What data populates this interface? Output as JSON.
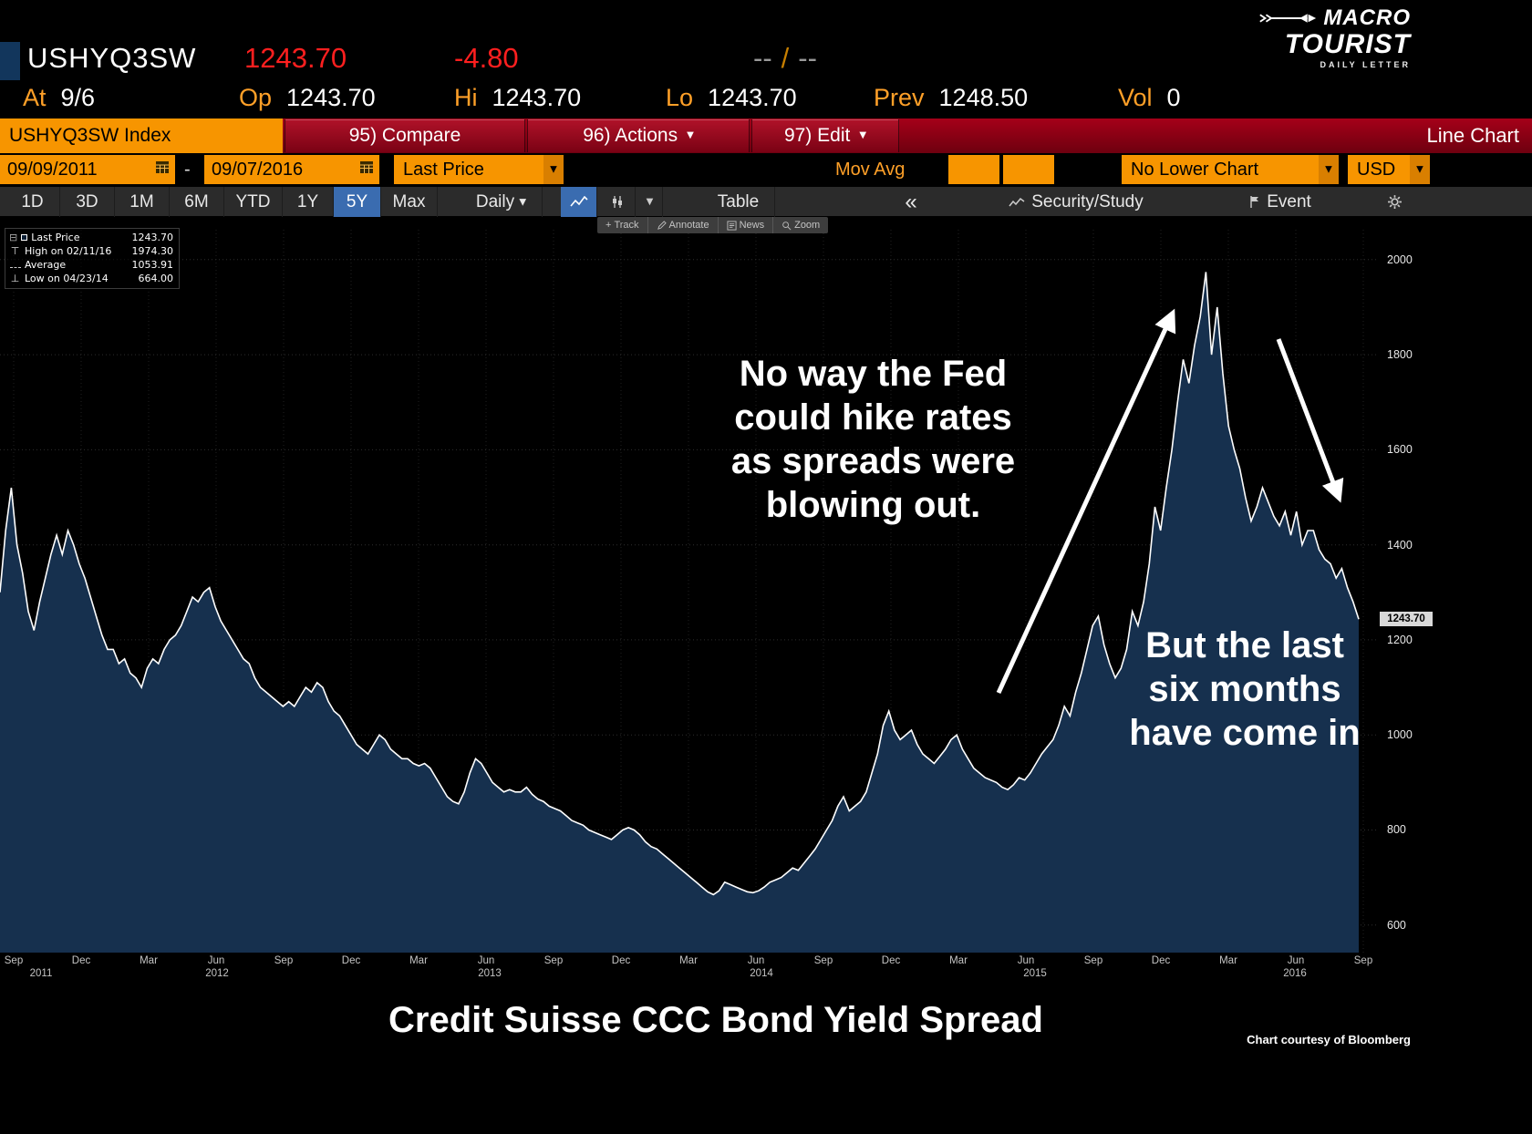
{
  "header": {
    "ticker": "USHYQ3SW",
    "last_price": "1243.70",
    "change": "-4.80",
    "bid": "--",
    "bid_ask_sep": "/",
    "ask": "--",
    "at_label": "At",
    "at_value": "9/6",
    "stats": [
      {
        "label": "Op",
        "value": "1243.70"
      },
      {
        "label": "Hi",
        "value": "1243.70"
      },
      {
        "label": "Lo",
        "value": "1243.70"
      },
      {
        "label": "Prev",
        "value": "1248.50"
      },
      {
        "label": "Vol",
        "value": "0"
      }
    ],
    "logo": {
      "top": "MACRO",
      "bottom": "TOURIST",
      "tagline": "DAILY LETTER"
    }
  },
  "menubar": {
    "security_label": "USHYQ3SW Index",
    "compare": "95) Compare",
    "actions": "96) Actions",
    "edit": "97) Edit",
    "chart_type": "Line Chart"
  },
  "datebar": {
    "start_date": "09/09/2011",
    "range_separator": "-",
    "end_date": "09/07/2016",
    "price_field": "Last Price",
    "mov_avg_label": "Mov Avg",
    "lower_chart": "No Lower Chart",
    "currency": "USD"
  },
  "toolbar": {
    "ranges": [
      "1D",
      "3D",
      "1M",
      "6M",
      "YTD",
      "1Y",
      "5Y",
      "Max"
    ],
    "selected_range": "5Y",
    "period": "Daily",
    "table_label": "Table",
    "collapse_label": "«",
    "security_study": "Security/Study",
    "event_label": "Event"
  },
  "chart_controls": {
    "track": "Track",
    "annotate": "Annotate",
    "news": "News",
    "zoom": "Zoom"
  },
  "legend": [
    {
      "label": "Last Price",
      "value": "1243.70"
    },
    {
      "label": "High on 02/11/16",
      "value": "1974.30"
    },
    {
      "label": "Average",
      "value": "1053.91"
    },
    {
      "label": "Low on 04/23/14",
      "value": "664.00"
    }
  ],
  "annotations": {
    "note1_lines": [
      "No way the Fed",
      "could hike rates",
      "as spreads were",
      "blowing out."
    ],
    "note2_lines": [
      "But the last",
      "six months",
      "have come in"
    ]
  },
  "footer": {
    "title": "Credit Suisse CCC Bond Yield Spread",
    "credit": "Chart courtesy of Bloomberg"
  },
  "chart_data": {
    "type": "area",
    "title": "Credit Suisse CCC Bond Yield Spread",
    "series_label": "Last Price",
    "x_start": "09/09/2011",
    "x_end": "09/07/2016",
    "ylim": [
      542,
      2063
    ],
    "y_ticks": [
      600,
      800,
      1000,
      1200,
      1400,
      1600,
      1800,
      2000
    ],
    "grid": true,
    "last_value": 1243.7,
    "high": {
      "date": "02/11/16",
      "value": 1974.3
    },
    "average": 1053.91,
    "low": {
      "date": "04/23/14",
      "value": 664.0
    },
    "x_month_labels": [
      "Sep",
      "Dec",
      "Mar",
      "Jun",
      "Sep",
      "Dec",
      "Mar",
      "Jun",
      "Sep",
      "Dec",
      "Mar",
      "Jun",
      "Sep",
      "Dec",
      "Mar",
      "Jun",
      "Sep",
      "Dec",
      "Mar",
      "Jun",
      "Sep"
    ],
    "x_year_labels": [
      "2011",
      "2012",
      "2013",
      "2014",
      "2015",
      "2016"
    ],
    "values": [
      1300,
      1430,
      1520,
      1400,
      1340,
      1260,
      1220,
      1280,
      1330,
      1380,
      1420,
      1380,
      1430,
      1400,
      1360,
      1330,
      1290,
      1250,
      1210,
      1180,
      1180,
      1150,
      1160,
      1130,
      1120,
      1100,
      1140,
      1160,
      1150,
      1180,
      1200,
      1210,
      1230,
      1260,
      1290,
      1280,
      1300,
      1310,
      1270,
      1240,
      1220,
      1200,
      1180,
      1160,
      1150,
      1120,
      1100,
      1090,
      1080,
      1070,
      1060,
      1070,
      1060,
      1080,
      1100,
      1090,
      1110,
      1100,
      1070,
      1050,
      1040,
      1020,
      1000,
      980,
      970,
      960,
      980,
      1000,
      990,
      970,
      960,
      950,
      950,
      940,
      935,
      940,
      930,
      910,
      890,
      870,
      860,
      855,
      880,
      920,
      950,
      940,
      920,
      900,
      890,
      880,
      885,
      880,
      880,
      890,
      875,
      865,
      860,
      850,
      845,
      840,
      830,
      820,
      815,
      810,
      800,
      795,
      790,
      785,
      780,
      790,
      800,
      805,
      800,
      790,
      775,
      765,
      760,
      750,
      740,
      730,
      720,
      710,
      700,
      690,
      680,
      670,
      664,
      672,
      690,
      685,
      680,
      675,
      670,
      668,
      672,
      680,
      690,
      695,
      700,
      710,
      720,
      715,
      730,
      745,
      760,
      780,
      800,
      820,
      850,
      870,
      840,
      850,
      860,
      880,
      920,
      960,
      1020,
      1050,
      1010,
      990,
      1000,
      1010,
      980,
      960,
      950,
      940,
      955,
      970,
      990,
      1000,
      970,
      950,
      930,
      920,
      910,
      905,
      900,
      890,
      885,
      895,
      910,
      905,
      920,
      940,
      960,
      975,
      990,
      1020,
      1060,
      1040,
      1090,
      1130,
      1180,
      1230,
      1250,
      1190,
      1150,
      1120,
      1140,
      1180,
      1260,
      1230,
      1280,
      1360,
      1480,
      1430,
      1520,
      1600,
      1700,
      1790,
      1740,
      1820,
      1880,
      1974,
      1800,
      1900,
      1760,
      1650,
      1600,
      1560,
      1500,
      1450,
      1480,
      1520,
      1490,
      1460,
      1440,
      1470,
      1420,
      1470,
      1400,
      1430,
      1430,
      1390,
      1370,
      1360,
      1330,
      1350,
      1310,
      1280,
      1243.7
    ]
  }
}
